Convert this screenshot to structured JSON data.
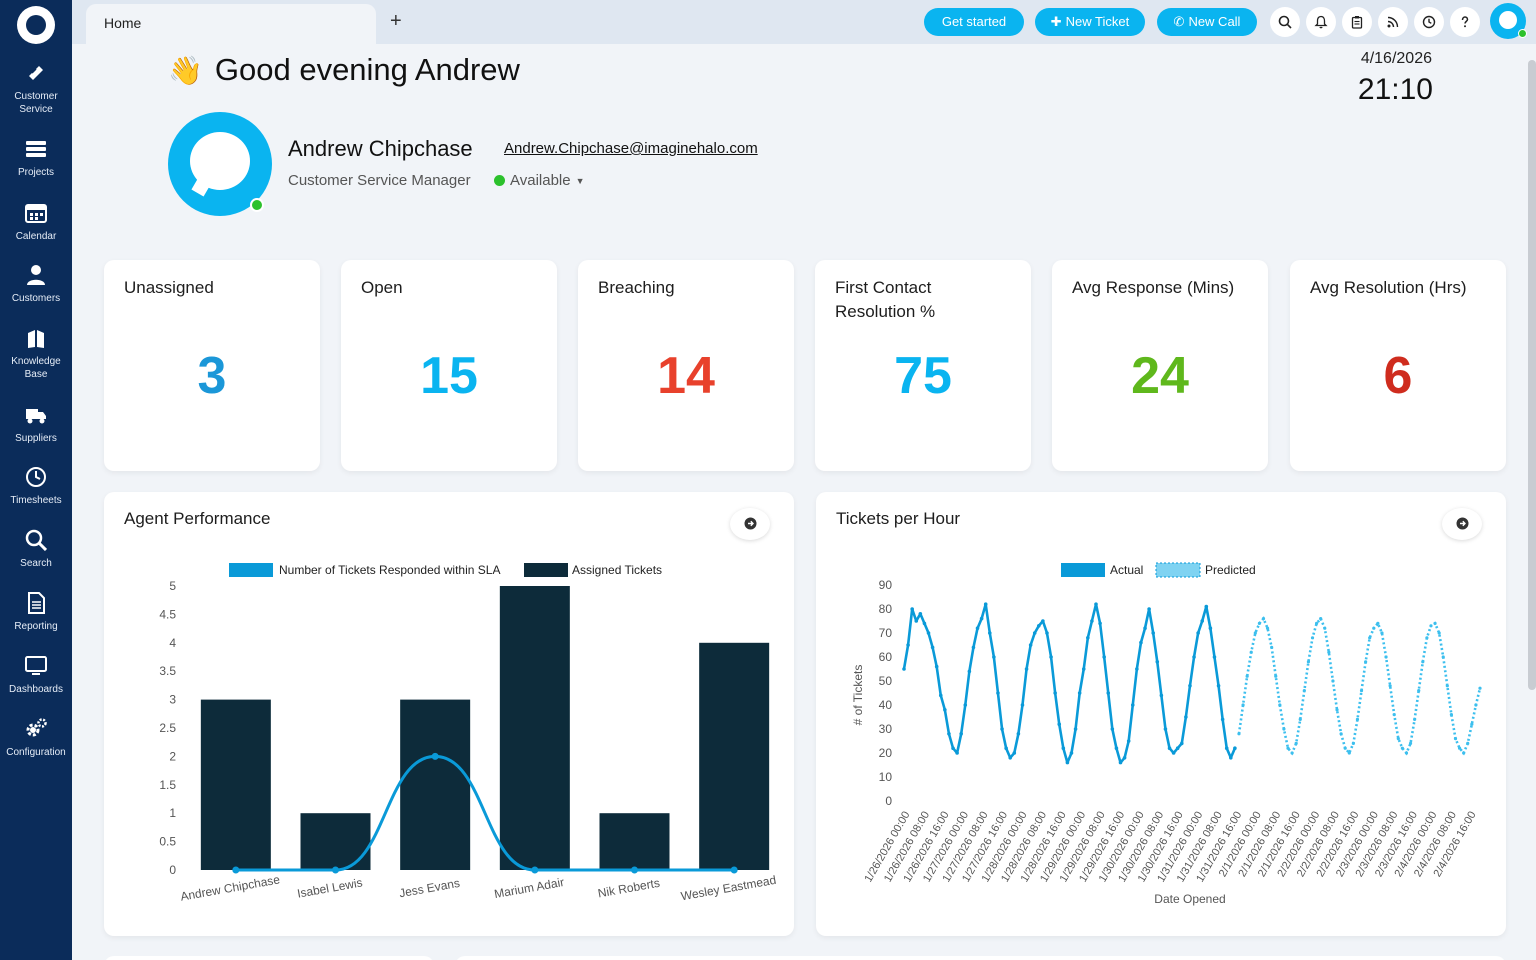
{
  "sidebar": {
    "items": [
      {
        "name": "customer-service",
        "label": "Customer\nService",
        "icon": "ticket-icon"
      },
      {
        "name": "projects",
        "label": "Projects",
        "icon": "layers-icon"
      },
      {
        "name": "calendar",
        "label": "Calendar",
        "icon": "calendar-icon"
      },
      {
        "name": "customers",
        "label": "Customers",
        "icon": "user-icon"
      },
      {
        "name": "knowledge-base",
        "label": "Knowledge\nBase",
        "icon": "book-icon"
      },
      {
        "name": "suppliers",
        "label": "Suppliers",
        "icon": "truck-icon"
      },
      {
        "name": "timesheets",
        "label": "Timesheets",
        "icon": "clock-icon"
      },
      {
        "name": "search",
        "label": "Search",
        "icon": "search-icon"
      },
      {
        "name": "reporting",
        "label": "Reporting",
        "icon": "document-icon"
      },
      {
        "name": "dashboards",
        "label": "Dashboards",
        "icon": "monitor-icon"
      },
      {
        "name": "configuration",
        "label": "Configuration",
        "icon": "gear-icon"
      }
    ]
  },
  "topbar": {
    "tab_home": "Home",
    "tab_add": "+",
    "get_started": "Get started",
    "new_ticket": "New Ticket",
    "new_call": "New Call",
    "icons": [
      "search-icon",
      "bell-icon",
      "clipboard-icon",
      "rss-icon",
      "clock-icon",
      "help-icon"
    ]
  },
  "greeting": {
    "text": "Good evening Andrew",
    "emoji": "👋"
  },
  "datetime": {
    "date": "4/16/2026",
    "time": "21:10"
  },
  "profile": {
    "name": "Andrew Chipchase",
    "email": "Andrew.Chipchase@imaginehalo.com",
    "role": "Customer Service Manager",
    "status": "Available"
  },
  "stats": [
    {
      "title": "Unassigned",
      "value": "3",
      "color": "#1b97d8"
    },
    {
      "title": "Open",
      "value": "15",
      "color": "#0ab4f0"
    },
    {
      "title": "Breaching",
      "value": "14",
      "color": "#e8412c"
    },
    {
      "title": "First Contact Resolution %",
      "value": "75",
      "color": "#0ab4f0"
    },
    {
      "title": "Avg Response (Mins)",
      "value": "24",
      "color": "#5fb81c"
    },
    {
      "title": "Avg Resolution (Hrs)",
      "value": "6",
      "color": "#cf2c1e"
    }
  ],
  "colors": {
    "accent": "#0ab4f0",
    "sidebar": "#0b2c5a",
    "bar_dark": "#0d2b3a",
    "line_blue": "#0a9ad8"
  },
  "agent_chart": {
    "title": "Agent Performance",
    "chart_data": {
      "type": "bar",
      "categories": [
        "Andrew Chipchase",
        "Isabel Lewis",
        "Jess Evans",
        "Marium Adair",
        "Nik Roberts",
        "Wesley Eastmead"
      ],
      "series": [
        {
          "name": "Number of Tickets Responded within SLA",
          "type": "line",
          "values": [
            0,
            0,
            2,
            0,
            0,
            0
          ]
        },
        {
          "name": "Assigned Tickets",
          "type": "bar",
          "values": [
            3,
            1,
            3,
            5,
            1,
            4
          ]
        }
      ],
      "ylim": [
        0,
        5
      ],
      "yticks": [
        "0",
        "0.5",
        "1",
        "1.5",
        "2",
        "2.5",
        "3",
        "3.5",
        "4",
        "4.5",
        "5"
      ],
      "legend": "top"
    }
  },
  "hour_chart": {
    "title": "Tickets per Hour",
    "chart_data": {
      "type": "line",
      "xlabel": "Date Opened",
      "ylabel": "# of Tickets",
      "ylim": [
        0,
        90
      ],
      "yticks": [
        "0",
        "10",
        "20",
        "30",
        "40",
        "50",
        "60",
        "70",
        "80",
        "90"
      ],
      "xticks": [
        "1/26/2026 00:00",
        "1/26/2026 08:00",
        "1/26/2026 16:00",
        "1/27/2026 00:00",
        "1/27/2026 08:00",
        "1/27/2026 16:00",
        "1/28/2026 00:00",
        "1/28/2026 08:00",
        "1/28/2026 16:00",
        "1/29/2026 00:00",
        "1/29/2026 08:00",
        "1/29/2026 16:00",
        "1/30/2026 00:00",
        "1/30/2026 08:00",
        "1/30/2026 16:00",
        "1/31/2026 00:00",
        "1/31/2026 08:00",
        "1/31/2026 16:00",
        "2/1/2026 00:00",
        "2/1/2026 08:00",
        "2/1/2026 16:00",
        "2/2/2026 00:00",
        "2/2/2026 08:00",
        "2/2/2026 16:00",
        "2/3/2026 00:00",
        "2/3/2026 08:00",
        "2/3/2026 16:00",
        "2/4/2026 00:00",
        "2/4/2026 08:00",
        "2/4/2026 16:00"
      ],
      "series": [
        {
          "name": "Actual",
          "style": "solid",
          "values": [
            55,
            65,
            80,
            75,
            78,
            74,
            70,
            64,
            56,
            44,
            38,
            28,
            22,
            20,
            28,
            40,
            54,
            64,
            72,
            76,
            82,
            70,
            60,
            45,
            30,
            22,
            18,
            20,
            28,
            40,
            55,
            65,
            70,
            73,
            75,
            70,
            60,
            45,
            32,
            22,
            16,
            20,
            30,
            45,
            55,
            68,
            75,
            82,
            74,
            60,
            45,
            30,
            22,
            16,
            18,
            25,
            40,
            55,
            66,
            72,
            80,
            70,
            58,
            44,
            30,
            22,
            20,
            22,
            24,
            35,
            48,
            60,
            70,
            75,
            81,
            72,
            60,
            48,
            34,
            22,
            18,
            22
          ]
        },
        {
          "name": "Predicted",
          "style": "dotted",
          "values": [
            28,
            40,
            52,
            62,
            70,
            74,
            76,
            72,
            64,
            52,
            40,
            30,
            22,
            20,
            24,
            34,
            46,
            58,
            68,
            74,
            76,
            72,
            62,
            50,
            38,
            28,
            22,
            20,
            24,
            34,
            46,
            58,
            68,
            72,
            74,
            70,
            60,
            48,
            36,
            26,
            22,
            20,
            24,
            34,
            46,
            58,
            68,
            73,
            74,
            70,
            60,
            48,
            36,
            26,
            22,
            20,
            24,
            32,
            40,
            47
          ]
        }
      ],
      "legend": "top"
    }
  }
}
